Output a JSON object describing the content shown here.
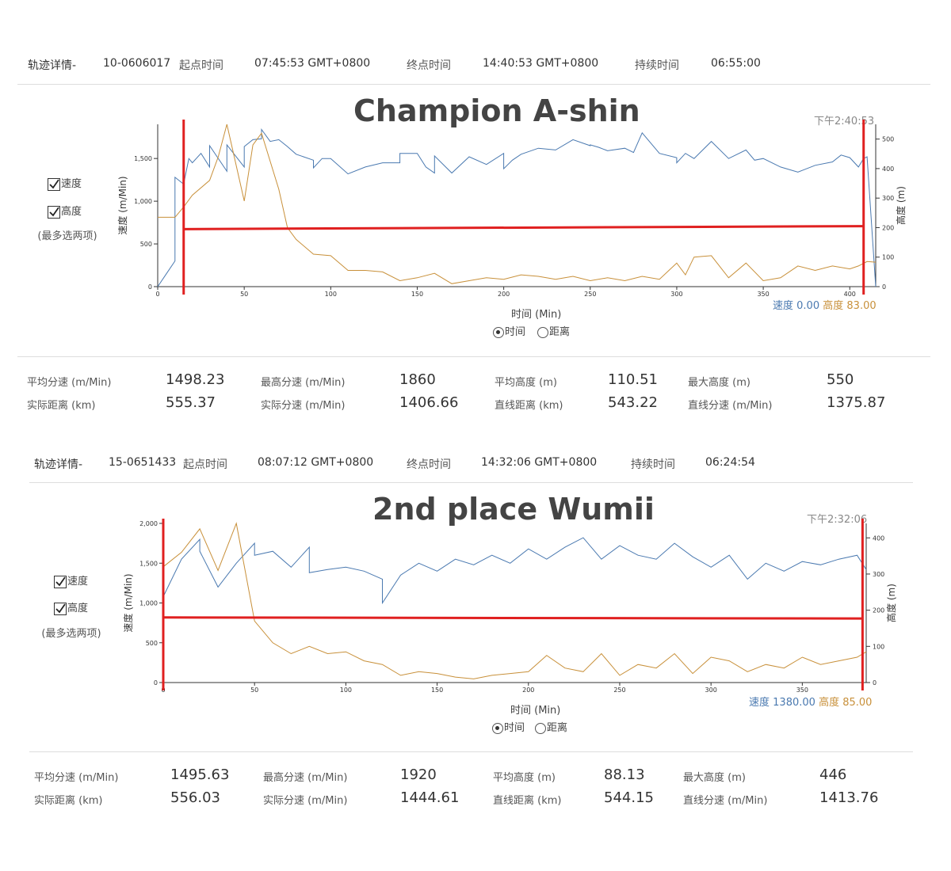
{
  "colors": {
    "speed": "#4a79b0",
    "altitude": "#c8903a",
    "marker": "#e02020"
  },
  "panels": [
    {
      "header": {
        "track_label": "轨迹详情-",
        "track_id": "10-0606017",
        "start_label": "起点时间",
        "start_value": "07:45:53 GMT+0800",
        "end_label": "终点时间",
        "end_value": "14:40:53 GMT+0800",
        "duration_label": "持续时间",
        "duration_value": "06:55:00"
      },
      "title": "Champion A-shin",
      "checkboxes": {
        "speed_label": "速度",
        "altitude_label": "高度",
        "speed_checked": true,
        "altitude_checked": true
      },
      "note": "(最多选两项)",
      "timestamp": "下午2:40:53",
      "x_axis_label": "时间 (Min)",
      "radio": {
        "time_label": "时间",
        "distance_label": "距离",
        "selected": "time"
      },
      "readout": {
        "speed_label": "速度",
        "speed_value": "0.00",
        "altitude_label": "高度",
        "altitude_value": "83.00"
      },
      "stats": {
        "avg_speed_label": "平均分速 (m/Min)",
        "avg_speed": "1498.23",
        "max_speed_label": "最高分速 (m/Min)",
        "max_speed": "1860",
        "avg_alt_label": "平均高度 (m)",
        "avg_alt": "110.51",
        "max_alt_label": "最大高度 (m)",
        "max_alt": "550",
        "actual_dist_label": "实际距离 (km)",
        "actual_dist": "555.37",
        "actual_speed_label": "实际分速 (m/Min)",
        "actual_speed": "1406.66",
        "straight_dist_label": "直线距离 (km)",
        "straight_dist": "543.22",
        "straight_speed_label": "直线分速 (m/Min)",
        "straight_speed": "1375.87"
      },
      "chart_data": {
        "type": "line",
        "x_label": "时间 (Min)",
        "y_left_label": "速度 (m/Min)",
        "y_right_label": "高度 (m)",
        "xlim": [
          0,
          415
        ],
        "ylim_left": [
          0,
          1900
        ],
        "ylim_right": [
          0,
          550
        ],
        "x_ticks": [
          0,
          50,
          100,
          150,
          200,
          250,
          300,
          350,
          400
        ],
        "x_tick_labels": [
          "0",
          "50",
          "100",
          "150",
          "200",
          "250",
          "300",
          "350",
          "400"
        ],
        "y_left_ticks": [
          0,
          500,
          1000,
          1500
        ],
        "y_left_tick_labels": [
          "0",
          "500",
          "1,000",
          "1,500"
        ],
        "y_right_ticks": [
          0,
          100,
          200,
          300,
          400,
          500
        ],
        "y_right_tick_labels": [
          "0",
          "100",
          "200",
          "300",
          "400",
          "500"
        ],
        "series": [
          {
            "name": "速度",
            "axis": "left",
            "x": [
              0,
              5,
              10,
              10,
              15,
              18,
              20,
              25,
              30,
              30,
              40,
              40,
              50,
              50,
              55,
              60,
              60,
              65,
              70,
              75,
              80,
              90,
              90,
              95,
              100,
              110,
              120,
              130,
              140,
              140,
              150,
              155,
              160,
              160,
              170,
              180,
              190,
              200,
              200,
              205,
              210,
              220,
              230,
              240,
              250,
              250,
              255,
              260,
              270,
              275,
              280,
              290,
              300,
              300,
              305,
              310,
              320,
              330,
              340,
              345,
              350,
              360,
              370,
              380,
              390,
              395,
              400,
              405,
              408,
              410,
              415
            ],
            "y": [
              0,
              150,
              300,
              1280,
              1200,
              1500,
              1450,
              1560,
              1400,
              1650,
              1350,
              1660,
              1400,
              1640,
              1720,
              1730,
              1840,
              1700,
              1720,
              1640,
              1550,
              1480,
              1390,
              1500,
              1500,
              1320,
              1400,
              1450,
              1450,
              1560,
              1560,
              1400,
              1330,
              1530,
              1330,
              1520,
              1430,
              1560,
              1380,
              1480,
              1550,
              1620,
              1600,
              1720,
              1650,
              1660,
              1630,
              1590,
              1620,
              1570,
              1800,
              1560,
              1510,
              1450,
              1560,
              1500,
              1700,
              1500,
              1600,
              1480,
              1500,
              1400,
              1340,
              1420,
              1460,
              1540,
              1510,
              1400,
              1500,
              1520,
              0
            ]
          },
          {
            "name": "高度",
            "axis": "right",
            "x": [
              0,
              10,
              15,
              20,
              30,
              35,
              40,
              50,
              55,
              60,
              70,
              75,
              80,
              90,
              100,
              110,
              120,
              130,
              140,
              150,
              160,
              170,
              180,
              190,
              200,
              210,
              220,
              230,
              240,
              250,
              260,
              270,
              280,
              290,
              300,
              305,
              310,
              320,
              330,
              340,
              350,
              360,
              370,
              380,
              390,
              400,
              405,
              410,
              415
            ],
            "y": [
              235,
              235,
              270,
              310,
              360,
              440,
              550,
              290,
              480,
              520,
              330,
              200,
              160,
              110,
              105,
              55,
              55,
              50,
              20,
              30,
              45,
              10,
              20,
              30,
              25,
              40,
              35,
              25,
              35,
              20,
              30,
              20,
              35,
              25,
              80,
              40,
              100,
              105,
              30,
              80,
              20,
              30,
              70,
              55,
              70,
              60,
              70,
              85,
              83
            ]
          }
        ],
        "markers_x": [
          15,
          408
        ],
        "marker_line": {
          "x": [
            15,
            408
          ],
          "y_right": [
            195,
            205
          ]
        }
      }
    },
    {
      "header": {
        "track_label": "轨迹详情-",
        "track_id": "15-0651433",
        "start_label": "起点时间",
        "start_value": "08:07:12 GMT+0800",
        "end_label": "终点时间",
        "end_value": "14:32:06 GMT+0800",
        "duration_label": "持续时间",
        "duration_value": "06:24:54"
      },
      "title": "2nd place Wumii",
      "checkboxes": {
        "speed_label": "速度",
        "altitude_label": "高度",
        "speed_checked": true,
        "altitude_checked": true
      },
      "note": "(最多选两项)",
      "timestamp": "下午2:32:06",
      "x_axis_label": "时间 (Min)",
      "radio": {
        "time_label": "时间",
        "distance_label": "距离",
        "selected": "time"
      },
      "readout": {
        "speed_label": "速度",
        "speed_value": "1380.00",
        "altitude_label": "高度",
        "altitude_value": "85.00"
      },
      "stats": {
        "avg_speed_label": "平均分速 (m/Min)",
        "avg_speed": "1495.63",
        "max_speed_label": "最高分速 (m/Min)",
        "max_speed": "1920",
        "avg_alt_label": "平均高度 (m)",
        "avg_alt": "88.13",
        "max_alt_label": "最大高度 (m)",
        "max_alt": "446",
        "actual_dist_label": "实际距离 (km)",
        "actual_dist": "556.03",
        "actual_speed_label": "实际分速 (m/Min)",
        "actual_speed": "1444.61",
        "straight_dist_label": "直线距离 (km)",
        "straight_dist": "544.15",
        "straight_speed_label": "直线分速 (m/Min)",
        "straight_speed": "1413.76"
      },
      "chart_data": {
        "type": "line",
        "x_label": "时间 (Min)",
        "y_left_label": "速度 (m/Min)",
        "y_right_label": "高度 (m)",
        "xlim": [
          0,
          385
        ],
        "ylim_left": [
          0,
          2000
        ],
        "ylim_right": [
          0,
          440
        ],
        "x_ticks": [
          0,
          50,
          100,
          150,
          200,
          250,
          300,
          350
        ],
        "x_tick_labels": [
          "0",
          "50",
          "100",
          "150",
          "200",
          "250",
          "300",
          "350"
        ],
        "y_left_ticks": [
          0,
          500,
          1000,
          1500,
          2000
        ],
        "y_left_tick_labels": [
          "0",
          "500",
          "1,000",
          "1,500",
          "2,000"
        ],
        "y_right_ticks": [
          0,
          100,
          200,
          300,
          400
        ],
        "y_right_tick_labels": [
          "0",
          "100",
          "200",
          "300",
          "400"
        ],
        "series": [
          {
            "name": "速度",
            "axis": "left",
            "x": [
              0,
              10,
              20,
              20,
              30,
              40,
              50,
              50,
              60,
              70,
              80,
              80,
              90,
              100,
              110,
              120,
              120,
              130,
              140,
              150,
              160,
              170,
              180,
              190,
              200,
              210,
              220,
              230,
              240,
              250,
              260,
              270,
              280,
              290,
              300,
              310,
              320,
              330,
              340,
              350,
              360,
              370,
              380,
              385
            ],
            "y": [
              1080,
              1550,
              1800,
              1650,
              1200,
              1500,
              1750,
              1600,
              1650,
              1450,
              1700,
              1380,
              1420,
              1450,
              1400,
              1300,
              1000,
              1350,
              1500,
              1400,
              1550,
              1480,
              1600,
              1500,
              1680,
              1550,
              1700,
              1820,
              1550,
              1720,
              1600,
              1550,
              1750,
              1580,
              1450,
              1600,
              1300,
              1500,
              1400,
              1520,
              1480,
              1550,
              1600,
              1420
            ]
          },
          {
            "name": "高度",
            "axis": "right",
            "x": [
              0,
              10,
              20,
              30,
              40,
              50,
              60,
              70,
              80,
              90,
              100,
              110,
              120,
              130,
              140,
              150,
              160,
              170,
              180,
              190,
              200,
              210,
              220,
              230,
              240,
              250,
              260,
              270,
              280,
              290,
              300,
              310,
              320,
              330,
              340,
              350,
              360,
              370,
              380,
              385
            ],
            "y": [
              320,
              360,
              425,
              310,
              440,
              170,
              110,
              80,
              100,
              80,
              85,
              60,
              50,
              20,
              30,
              25,
              15,
              10,
              20,
              25,
              30,
              75,
              40,
              30,
              80,
              20,
              50,
              40,
              80,
              25,
              70,
              60,
              30,
              50,
              40,
              70,
              50,
              60,
              70,
              85
            ]
          }
        ],
        "markers_x": [
          0,
          383
        ],
        "marker_line": {
          "x": [
            0,
            383
          ],
          "y_right": [
            180,
            177
          ]
        }
      }
    }
  ]
}
